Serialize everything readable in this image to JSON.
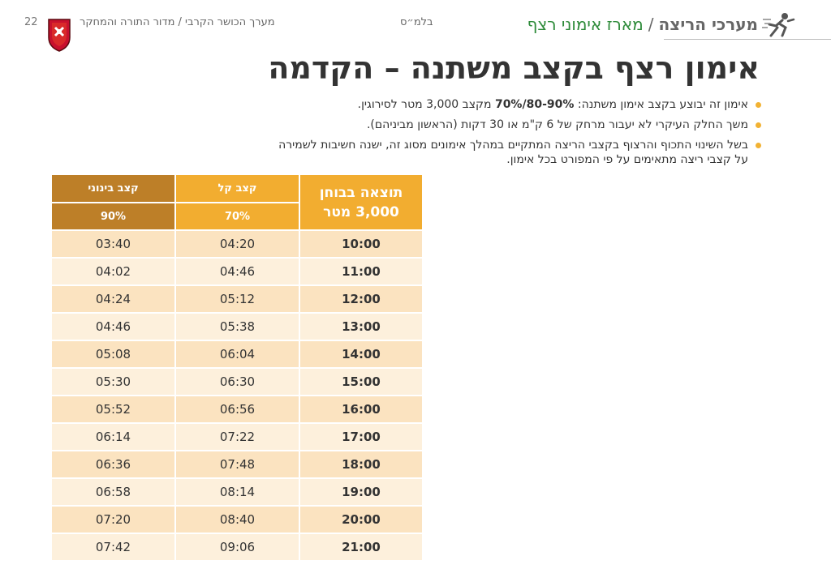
{
  "header": {
    "page_number": "22",
    "breadcrumb": "מערך הכושר הקרבי / מדור התורה והמחקר",
    "classification": "בלמ״ס",
    "section_main": "מערכי הריצה",
    "section_separator": "/",
    "section_sub": "מארז אימוני רצף"
  },
  "title": "אימון רצף בקצב משתנה – הקדמה",
  "bullets": [
    {
      "before": "אימון זה יבוצע בקצב אימון משתנה: ",
      "bold": "80-90%/70%",
      "after": " מקצב 3,000 מטר לסירוגין."
    },
    {
      "before": "משך החלק העיקרי לא יעבור מרחק של 6 ק\"מ או 30 דקות (הראשון מביניהם).",
      "bold": "",
      "after": ""
    },
    {
      "before": "בשל השינוי התכוף והרצוף בקצבי הריצה המתקיים במהלך אימונים מסוג זה, ישנה חשיבות לשמירה על קצבי ריצה מתאימים על פי המפורט בכל אימון.",
      "bold": "",
      "after": ""
    }
  ],
  "table": {
    "result_header": "תוצאה בבוחן 3,000 מטר",
    "light_header": "קצב קל",
    "light_pct": "70%",
    "mid_header": "קצב בינוני",
    "mid_pct": "90%",
    "rows": [
      {
        "result": "10:00",
        "light": "04:20",
        "mid": "03:40"
      },
      {
        "result": "11:00",
        "light": "04:46",
        "mid": "04:02"
      },
      {
        "result": "12:00",
        "light": "05:12",
        "mid": "04:24"
      },
      {
        "result": "13:00",
        "light": "05:38",
        "mid": "04:46"
      },
      {
        "result": "14:00",
        "light": "06:04",
        "mid": "05:08"
      },
      {
        "result": "15:00",
        "light": "06:30",
        "mid": "05:30"
      },
      {
        "result": "16:00",
        "light": "06:56",
        "mid": "05:52"
      },
      {
        "result": "17:00",
        "light": "07:22",
        "mid": "06:14"
      },
      {
        "result": "18:00",
        "light": "07:48",
        "mid": "06:36"
      },
      {
        "result": "19:00",
        "light": "08:14",
        "mid": "06:58"
      },
      {
        "result": "20:00",
        "light": "08:40",
        "mid": "07:20"
      },
      {
        "result": "21:00",
        "light": "09:06",
        "mid": "07:42"
      }
    ]
  },
  "colors": {
    "accent_orange": "#f2ad30",
    "accent_brown": "#bd7f28",
    "row_odd": "#fbe3c0",
    "row_even": "#fdf0dc",
    "section_green": "#2e8b3a"
  },
  "icons": {
    "unit_emblem": "shield-emblem-icon",
    "runner": "runner-icon",
    "bullet": "bullet-dot-icon"
  }
}
